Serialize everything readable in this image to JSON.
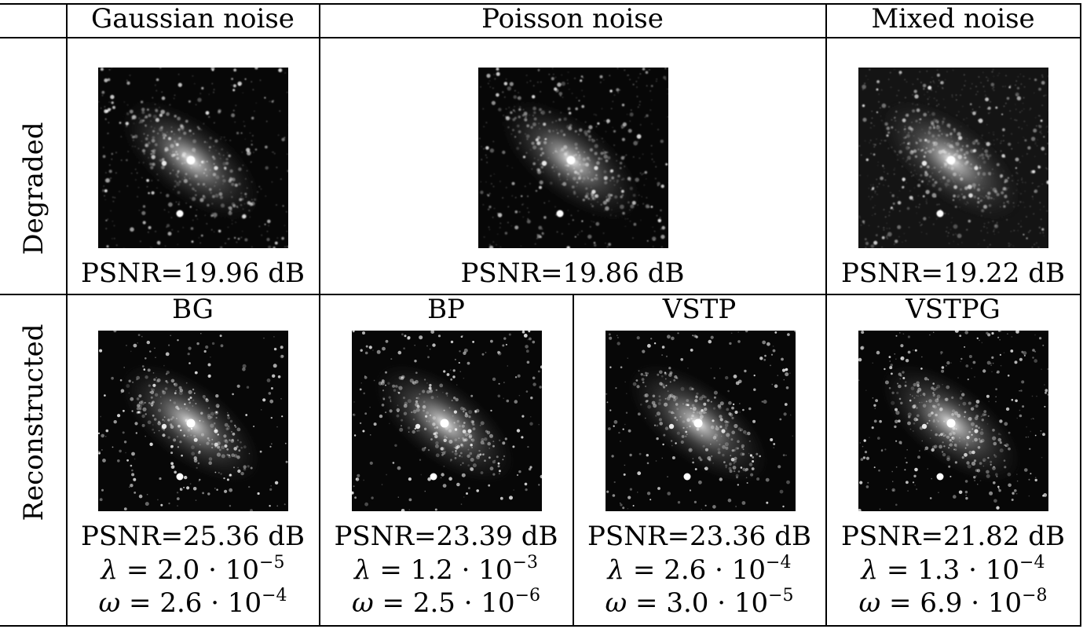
{
  "header": {
    "gaussian": "Gaussian noise",
    "poisson": "Poisson noise",
    "mixed": "Mixed noise"
  },
  "rows": {
    "degraded": "Degraded",
    "reconstructed": "Reconstructed"
  },
  "degraded": [
    {
      "psnr": "PSNR=19.96 dB"
    },
    {
      "psnr": "PSNR=19.86 dB"
    },
    {
      "psnr": "PSNR=19.22 dB"
    }
  ],
  "reconstructed": [
    {
      "method": "BG",
      "psnr": "PSNR=25.36 dB",
      "lambda_mant": "2.0",
      "lambda_exp": "−5",
      "omega_mant": "2.6",
      "omega_exp": "−4"
    },
    {
      "method": "BP",
      "psnr": "PSNR=23.39 dB",
      "lambda_mant": "1.2",
      "lambda_exp": "−3",
      "omega_mant": "2.5",
      "omega_exp": "−6"
    },
    {
      "method": "VSTP",
      "psnr": "PSNR=23.36 dB",
      "lambda_mant": "2.6",
      "lambda_exp": "−4",
      "omega_mant": "3.0",
      "omega_exp": "−5"
    },
    {
      "method": "VSTPG",
      "psnr": "PSNR=21.82 dB",
      "lambda_mant": "1.3",
      "lambda_exp": "−4",
      "omega_mant": "6.9",
      "omega_exp": "−8"
    }
  ],
  "symbols": {
    "lambda": "λ",
    "omega": "ω",
    "equals": "=",
    "times_ten": "· 10"
  },
  "image_description": "galaxy-image"
}
